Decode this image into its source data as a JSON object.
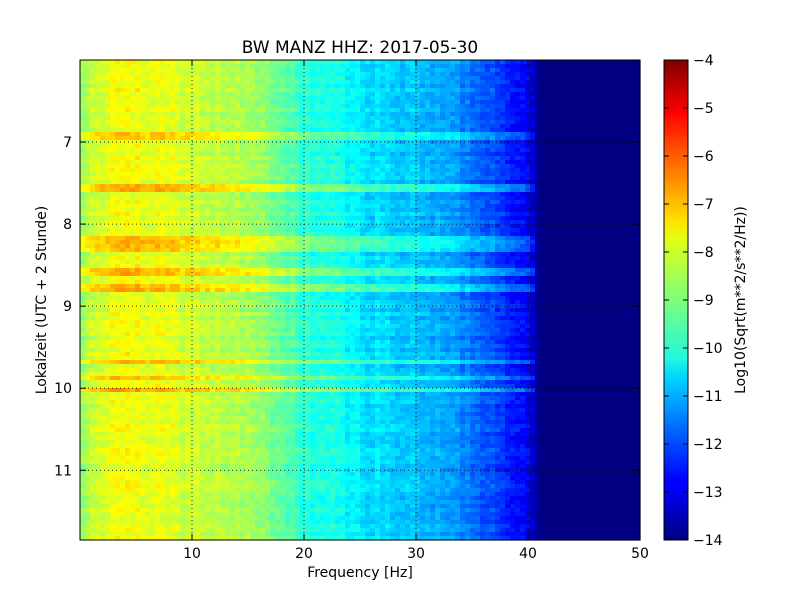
{
  "chart_data": {
    "type": "heatmap",
    "title": "BW MANZ HHZ: 2017-05-30",
    "xlabel": "Frequency [Hz]",
    "ylabel": "Lokalzeit (UTC + 2 Stunde)",
    "xlim": [
      0,
      50
    ],
    "ylim": [
      11.85,
      6.0
    ],
    "y_axis_inverted": true,
    "x_ticks": [
      "10",
      "20",
      "30",
      "40",
      "50"
    ],
    "x_tick_values": [
      10,
      20,
      30,
      40,
      50
    ],
    "y_ticks": [
      "7",
      "8",
      "9",
      "10",
      "11"
    ],
    "y_tick_values": [
      7,
      8,
      9,
      10,
      11
    ],
    "grid": true,
    "grid_style": "dotted",
    "colormap": "jet",
    "colorbar": {
      "label": "Log10(Sqrt(m**2/s**2/Hz))",
      "range": [
        -14,
        -4
      ],
      "ticks": [
        "−4",
        "−5",
        "−6",
        "−7",
        "−8",
        "−9",
        "−10",
        "−11",
        "−12",
        "−13",
        "−14"
      ],
      "tick_values": [
        -4,
        -5,
        -6,
        -7,
        -8,
        -9,
        -10,
        -11,
        -12,
        -13,
        -14
      ]
    },
    "spectral_profile": {
      "frequency_hz": [
        0,
        1,
        3,
        5,
        10,
        15,
        20,
        25,
        30,
        33,
        36,
        39,
        40,
        41,
        42,
        45,
        50
      ],
      "log10_amplitude": [
        -9.0,
        -8.4,
        -7.8,
        -7.9,
        -8.2,
        -8.6,
        -9.8,
        -10.4,
        -10.9,
        -11.2,
        -11.8,
        -12.5,
        -13.0,
        -13.9,
        -14.0,
        -14.0,
        -14.0
      ]
    },
    "high_noise_bands_hours": [
      6.92,
      7.55,
      8.2,
      8.3,
      8.58,
      8.78,
      9.68,
      9.88,
      10.02
    ]
  }
}
